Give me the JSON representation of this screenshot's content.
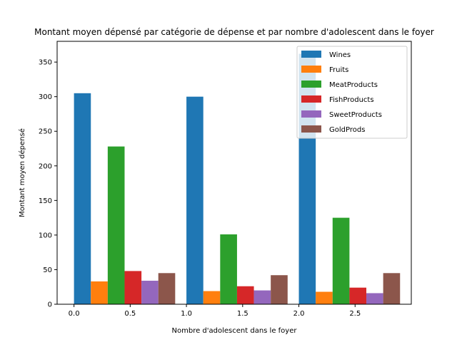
{
  "chart_data": {
    "type": "bar",
    "title": "Montant moyen dépensé par catégorie de dépense et par nombre d'adolescent dans le foyer",
    "xlabel": "Nombre d'adolescent dans le foyer",
    "ylabel": "Montant moyen dépensé",
    "categories": [
      0,
      1,
      2
    ],
    "xlim": [
      -0.15,
      3.0
    ],
    "ylim": [
      0,
      380
    ],
    "x_ticks": [
      "0.0",
      "0.5",
      "1.0",
      "1.5",
      "2.0",
      "2.5"
    ],
    "y_ticks": [
      "0",
      "50",
      "100",
      "150",
      "200",
      "250",
      "300",
      "350"
    ],
    "legend_position": "top-right",
    "grid": false,
    "series": [
      {
        "name": "Wines",
        "color": "#1f77b4",
        "values": [
          305,
          300,
          362
        ]
      },
      {
        "name": "Fruits",
        "color": "#ff7f0e",
        "values": [
          33,
          19,
          18
        ]
      },
      {
        "name": "MeatProducts",
        "color": "#2ca02c",
        "values": [
          228,
          101,
          125
        ]
      },
      {
        "name": "FishProducts",
        "color": "#d62728",
        "values": [
          48,
          26,
          24
        ]
      },
      {
        "name": "SweetProducts",
        "color": "#9467bd",
        "values": [
          34,
          20,
          16
        ]
      },
      {
        "name": "GoldProds",
        "color": "#8c564b",
        "values": [
          45,
          42,
          45
        ]
      }
    ]
  }
}
